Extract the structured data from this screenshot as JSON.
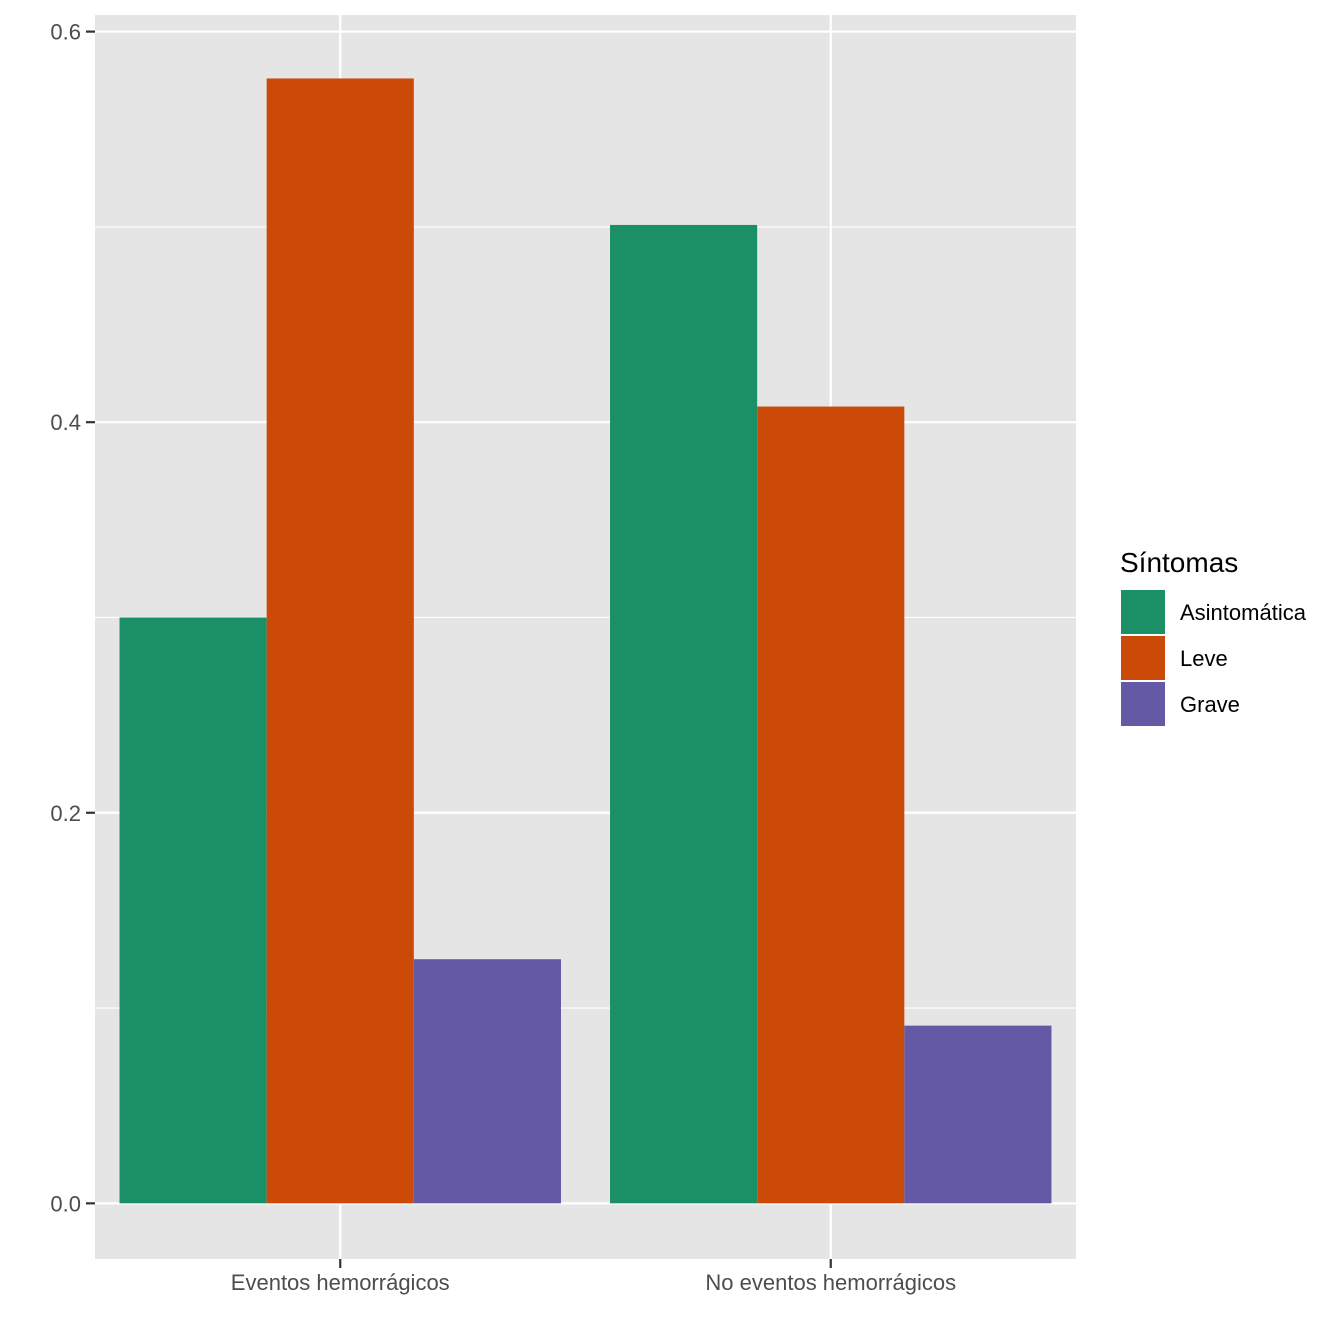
{
  "chart_data": {
    "type": "bar",
    "categories": [
      "Eventos hemorrágicos",
      "No eventos hemorrágicos"
    ],
    "series": [
      {
        "name": "Asintomática",
        "values": [
          0.3,
          0.501
        ],
        "color": "#1b9066"
      },
      {
        "name": "Leve",
        "values": [
          0.576,
          0.408
        ],
        "color": "#cc4a08"
      },
      {
        "name": "Grave",
        "values": [
          0.125,
          0.091
        ],
        "color": "#6359a5"
      }
    ],
    "ylim": [
      -0.0285,
      0.6085
    ],
    "yticks": [
      0.0,
      0.2,
      0.4,
      0.6
    ],
    "ytick_labels": [
      "0.0",
      "0.2",
      "0.4",
      "0.6"
    ],
    "xlabel": "",
    "ylabel": "",
    "legend": {
      "title": "Síntomas",
      "placement": "right"
    },
    "grid": true,
    "panel_background": "#e5e5e5",
    "grid_color": "#ffffff"
  }
}
